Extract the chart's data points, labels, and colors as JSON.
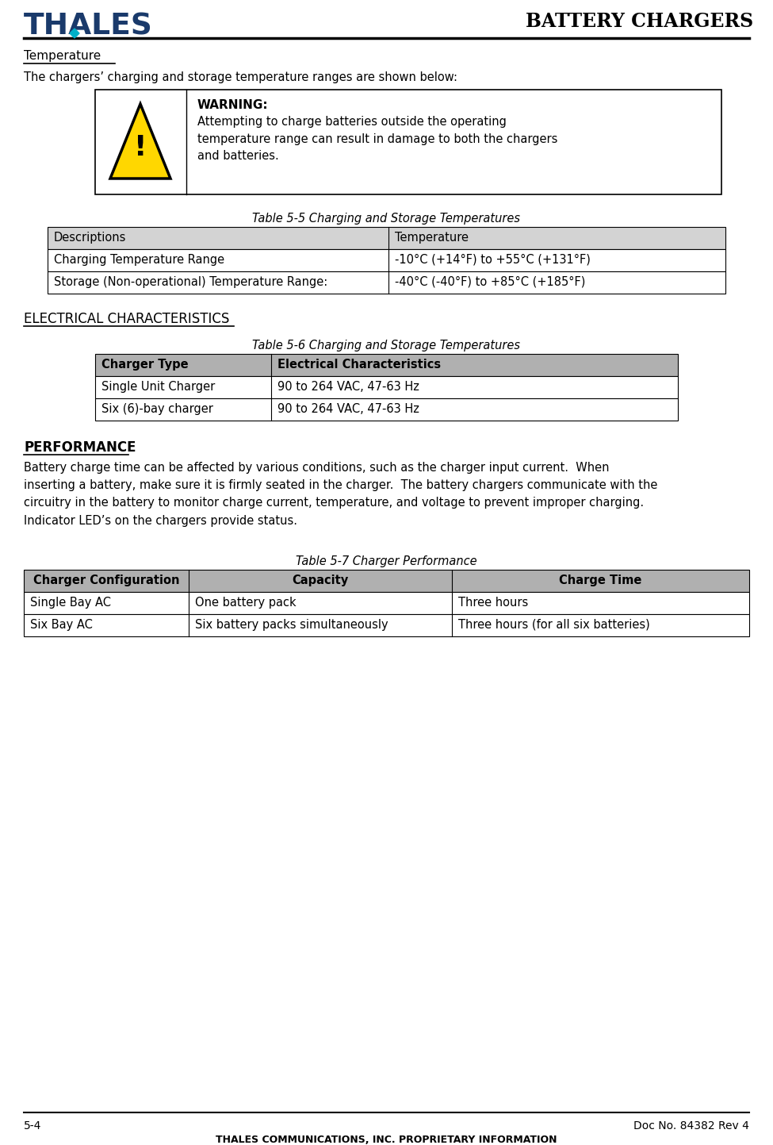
{
  "title_right": "BATTERY CHARGERS",
  "thales_logo_text": "THALES",
  "section1_heading": "Temperature",
  "section1_body": "The chargers’ charging and storage temperature ranges are shown below:",
  "warning_bold": "WARNING:",
  "warning_text": "Attempting to charge batteries outside the operating\ntemperature range can result in damage to both the chargers\nand batteries.",
  "table1_title": "Table 5-5 Charging and Storage Temperatures",
  "table1_headers": [
    "Descriptions",
    "Temperature"
  ],
  "table1_rows": [
    [
      "Charging Temperature Range",
      "-10°C (+14°F) to +55°C (+131°F)"
    ],
    [
      "Storage (Non-operational) Temperature Range:",
      "-40°C (-40°F) to +85°C (+185°F)"
    ]
  ],
  "section2_heading": "ELECTRICAL CHARACTERISTICS",
  "table2_title": "Table 5-6 Charging and Storage Temperatures",
  "table2_headers": [
    "Charger Type",
    "Electrical Characteristics"
  ],
  "table2_rows": [
    [
      "Single Unit Charger",
      "90 to 264 VAC, 47-63 Hz"
    ],
    [
      "Six (6)-bay charger",
      "90 to 264 VAC, 47-63 Hz"
    ]
  ],
  "section3_heading": "PERFORMANCE",
  "section3_body": "Battery charge time can be affected by various conditions, such as the charger input current.  When\ninserting a battery, make sure it is firmly seated in the charger.  The battery chargers communicate with the\ncircuitry in the battery to monitor charge current, temperature, and voltage to prevent improper charging.\nIndicator LED’s on the chargers provide status.",
  "table3_title": "Table 5-7 Charger Performance",
  "table3_headers": [
    "Charger Configuration",
    "Capacity",
    "Charge Time"
  ],
  "table3_rows": [
    [
      "Single Bay AC",
      "One battery pack",
      "Three hours"
    ],
    [
      "Six Bay AC",
      "Six battery packs simultaneously",
      "Three hours (for all six batteries)"
    ]
  ],
  "footer_left": "5-4",
  "footer_right": "Doc No. 84382 Rev 4",
  "footer_center": "THALES COMMUNICATIONS, INC. PROPRIETARY INFORMATION",
  "bg_color": "#ffffff",
  "thales_blue": "#1a3a6b",
  "thales_teal": "#00b0c8",
  "table_header_bg1": "#d3d3d3",
  "table_header_bg2": "#b0b0b0"
}
